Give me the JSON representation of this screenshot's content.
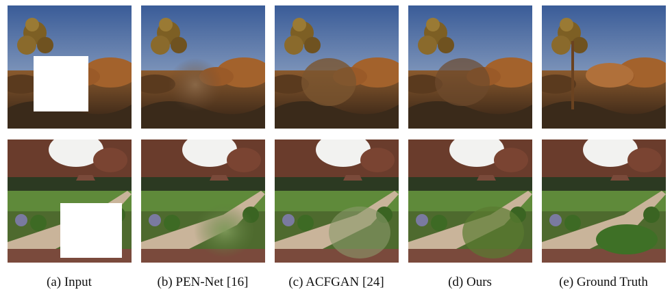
{
  "captions": [
    "(a) Input",
    "(b) PEN-Net [16]",
    "(c) ACFGAN [24]",
    "(d) Ours",
    "(e) Ground Truth"
  ]
}
